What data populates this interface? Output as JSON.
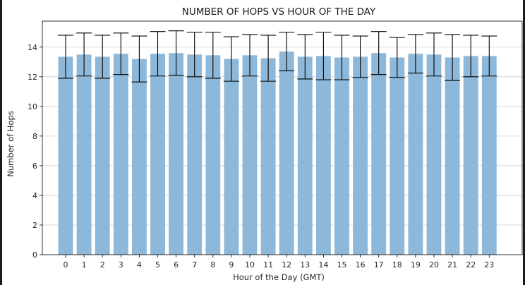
{
  "chart_data": {
    "type": "bar",
    "title": "NUMBER OF HOPS VS HOUR OF THE DAY",
    "xlabel": "Hour of the Day (GMT)",
    "ylabel": "Number of Hops",
    "categories": [
      "0",
      "1",
      "2",
      "3",
      "4",
      "5",
      "6",
      "7",
      "8",
      "9",
      "10",
      "11",
      "12",
      "13",
      "14",
      "15",
      "16",
      "17",
      "18",
      "19",
      "20",
      "21",
      "22",
      "23"
    ],
    "values": [
      13.35,
      13.5,
      13.35,
      13.55,
      13.2,
      13.55,
      13.6,
      13.5,
      13.45,
      13.2,
      13.45,
      13.25,
      13.7,
      13.35,
      13.4,
      13.3,
      13.35,
      13.6,
      13.3,
      13.55,
      13.5,
      13.3,
      13.4,
      13.4
    ],
    "error": [
      1.45,
      1.45,
      1.45,
      1.4,
      1.55,
      1.5,
      1.5,
      1.5,
      1.55,
      1.5,
      1.4,
      1.55,
      1.3,
      1.5,
      1.6,
      1.5,
      1.4,
      1.45,
      1.35,
      1.3,
      1.45,
      1.55,
      1.4,
      1.35
    ],
    "yticks": [
      0,
      2,
      4,
      6,
      8,
      10,
      12,
      14
    ],
    "ylim": [
      0,
      15.75
    ],
    "grid": "y",
    "bar_color": "#8db8d9",
    "error_color": "#000000",
    "grid_color": "#cccccc"
  }
}
